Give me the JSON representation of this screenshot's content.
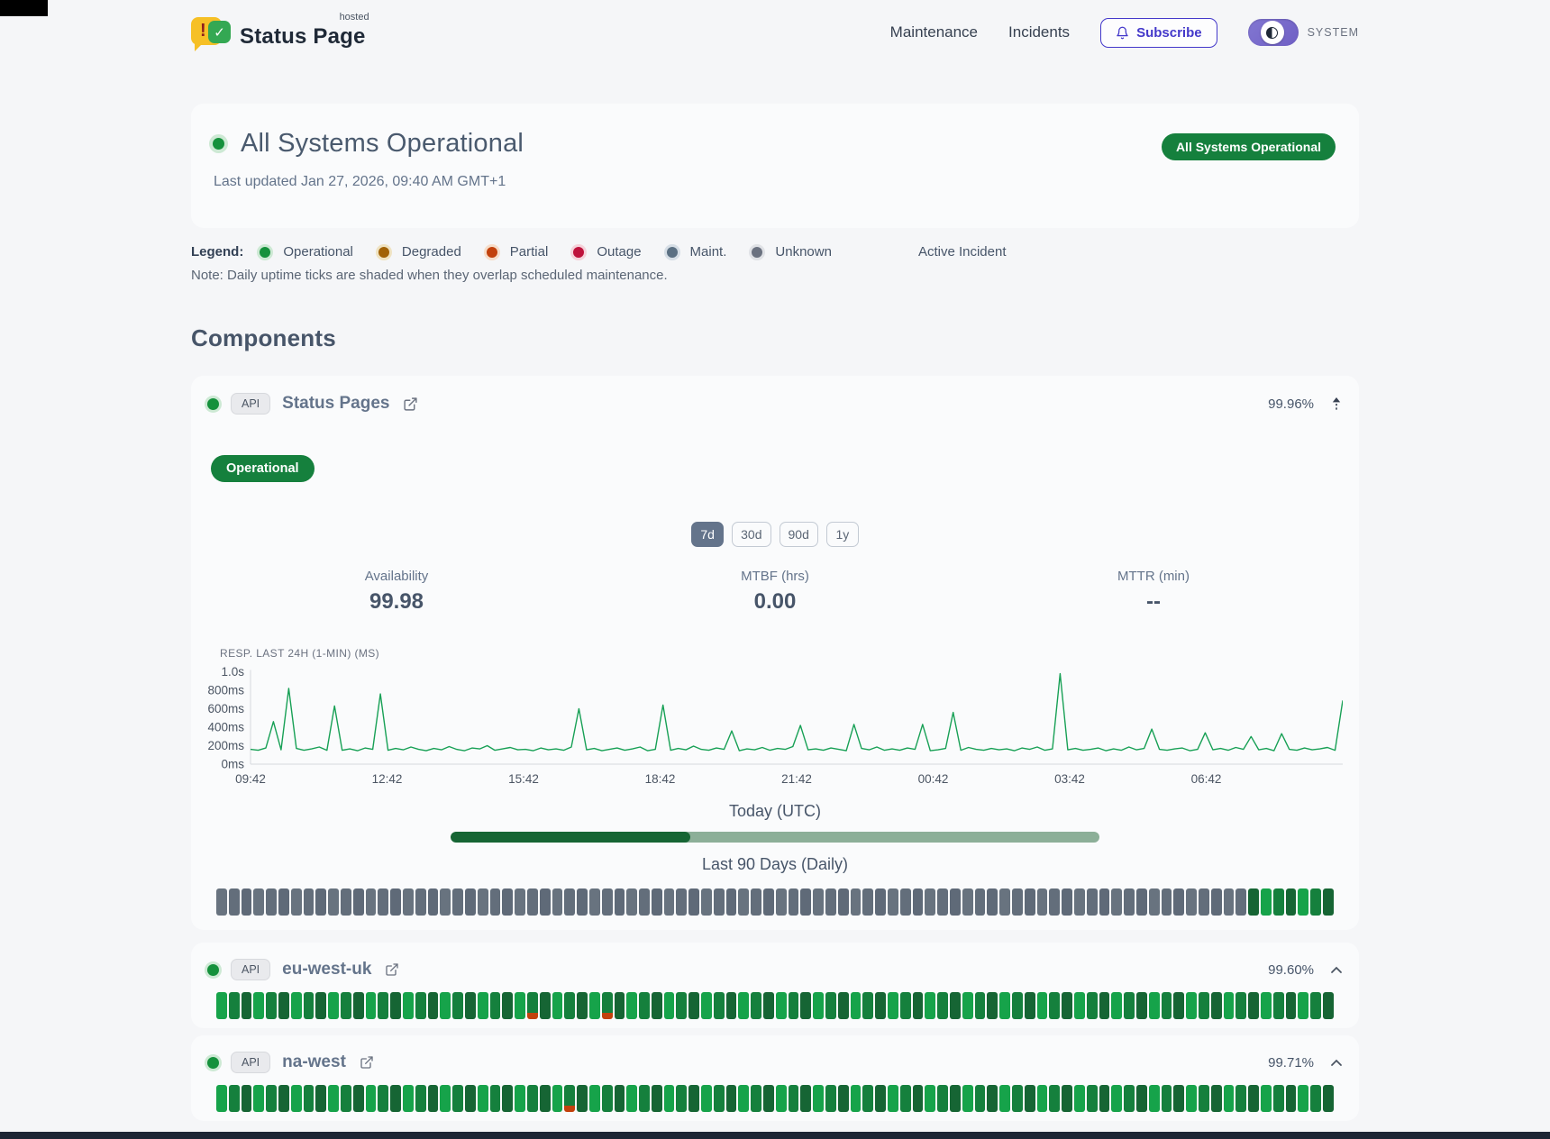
{
  "header": {
    "brand": "Status Page",
    "brand_superscript": "hosted",
    "nav": {
      "maintenance": "Maintenance",
      "incidents": "Incidents"
    },
    "subscribe_label": "Subscribe",
    "theme_label": "SYSTEM"
  },
  "hero": {
    "title": "All Systems Operational",
    "last_updated": "Last updated Jan 27, 2026, 09:40 AM GMT+1",
    "badge": "All Systems Operational",
    "status_color": "#15803d"
  },
  "legend": {
    "label": "Legend:",
    "items": [
      {
        "label": "Operational",
        "color": "#15913c",
        "ring": "#cde9d4"
      },
      {
        "label": "Degraded",
        "color": "#a16207",
        "ring": "#efe3c2"
      },
      {
        "label": "Partial",
        "color": "#c2410c",
        "ring": "#f6ddc9"
      },
      {
        "label": "Outage",
        "color": "#be123c",
        "ring": "#f5d2da"
      },
      {
        "label": "Maint.",
        "color": "#5b7083",
        "ring": "#d6dee6"
      },
      {
        "label": "Unknown",
        "color": "#6b7280",
        "ring": "#e0e2e6"
      }
    ],
    "active_incident": "Active Incident",
    "note": "Note: Daily uptime ticks are shaded when they overlap scheduled maintenance."
  },
  "components": {
    "title": "Components",
    "primary": {
      "name": "Status Pages",
      "tag": "API",
      "uptime": "99.96%",
      "status_badge": "Operational",
      "ranges": [
        "7d",
        "30d",
        "90d",
        "1y"
      ],
      "active_range": "7d",
      "stats": [
        {
          "label": "Availability",
          "value": "99.98"
        },
        {
          "label": "MTBF (hrs)",
          "value": "0.00"
        },
        {
          "label": "MTTR (min)",
          "value": "--"
        }
      ],
      "chart_label": "RESP. LAST 24H (1-MIN) (MS)",
      "today_label": "Today (UTC)",
      "today_pct": 37,
      "history_label": "Last 90 Days (Daily)",
      "history": "uuuuuuuuuuuuuuuuuuuuuuuuuuuuuuuuuuuuuuuuuuuuuuuuuuuuuuuuuuuuuuuuuuuuuuuuuuuuuuuuuuuooooooo"
    },
    "secondary": [
      {
        "name": "eu-west-uk",
        "tag": "API",
        "uptime": "99.60%",
        "history": "ooooooooooooooooooooooooopooooopoooooooooooooooooooooooooooooooooooooooooooooooooooooooooo"
      },
      {
        "name": "na-west",
        "tag": "API",
        "uptime": "99.71%",
        "history": "oooooooooooooooooooooooooooopooooooooooooooooooooooooooooooooooooooooooooooooooooooooooooo"
      }
    ]
  },
  "chart_data": {
    "type": "line",
    "title": "RESP. LAST 24H (1-MIN) (MS)",
    "series_name": "Response time (ms)",
    "line_color": "#17a055",
    "ylim": [
      0,
      1000
    ],
    "ytick_labels": [
      "1.0s",
      "800ms",
      "600ms",
      "400ms",
      "200ms",
      "0ms"
    ],
    "ytick_values": [
      1000,
      800,
      600,
      400,
      200,
      0
    ],
    "xtick_labels": [
      "09:42",
      "12:42",
      "15:42",
      "18:42",
      "21:42",
      "00:42",
      "03:42",
      "06:42"
    ],
    "grid": false,
    "legend_position": "none",
    "values": [
      160,
      150,
      175,
      460,
      155,
      820,
      170,
      150,
      165,
      185,
      150,
      630,
      150,
      165,
      145,
      175,
      160,
      760,
      150,
      170,
      155,
      185,
      160,
      145,
      170,
      155,
      190,
      160,
      145,
      175,
      165,
      200,
      150,
      165,
      180,
      155,
      160,
      145,
      175,
      155,
      165,
      150,
      185,
      600,
      155,
      170,
      145,
      160,
      175,
      150,
      165,
      185,
      145,
      160,
      640,
      150,
      170,
      155,
      195,
      160,
      150,
      175,
      160,
      360,
      145,
      165,
      155,
      180,
      150,
      170,
      160,
      190,
      420,
      155,
      165,
      150,
      175,
      160,
      145,
      430,
      170,
      155,
      185,
      150,
      165,
      150,
      175,
      160,
      430,
      145,
      155,
      170,
      560,
      150,
      180,
      160,
      150,
      170,
      155,
      165,
      145,
      175,
      160,
      185,
      150,
      165,
      980,
      155,
      170,
      150,
      160,
      175,
      145,
      165,
      150,
      185,
      155,
      170,
      380,
      160,
      150,
      165,
      175,
      145,
      160,
      340,
      155,
      170,
      150,
      180,
      160,
      300,
      155,
      170,
      145,
      330,
      160,
      150,
      175,
      155,
      165,
      180,
      150,
      690
    ]
  }
}
